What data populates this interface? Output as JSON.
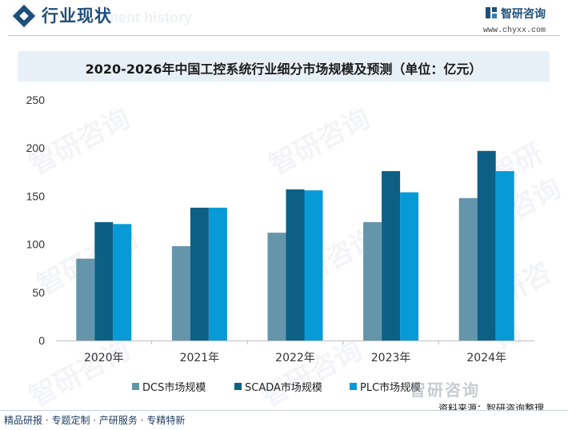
{
  "header": {
    "section_title": "行业现状",
    "watermark_text": "ment history",
    "brand_name": "智研咨询",
    "website": "www.chyxx.com"
  },
  "watermark": {
    "text": "智研咨询"
  },
  "chart_data": {
    "type": "bar",
    "title": "2020-2026年中国工控系统行业细分市场规模及预测（单位：亿元）",
    "xlabel": "",
    "ylabel": "",
    "categories": [
      "2020年",
      "2021年",
      "2022年",
      "2023年",
      "2024年"
    ],
    "series": [
      {
        "name": "DCS市场规模",
        "values": [
          85,
          98,
          112,
          123,
          148
        ],
        "color": "#6595ab"
      },
      {
        "name": "SCADA市场规模",
        "values": [
          123,
          138,
          157,
          176,
          197
        ],
        "color": "#0d5f84"
      },
      {
        "name": "PLC市场规模",
        "values": [
          121,
          138,
          156,
          154,
          176
        ],
        "color": "#079ad6"
      }
    ],
    "ylim": [
      0,
      250
    ],
    "yticks": [
      0,
      50,
      100,
      150,
      200,
      250
    ],
    "grid": false,
    "legend_position": "bottom"
  },
  "footer": {
    "logo_text": "智研咨询",
    "source": "资料来源：智研咨询整理",
    "tags": "精品研报 · 专题定制 · 产研服务 · 专精特新"
  }
}
